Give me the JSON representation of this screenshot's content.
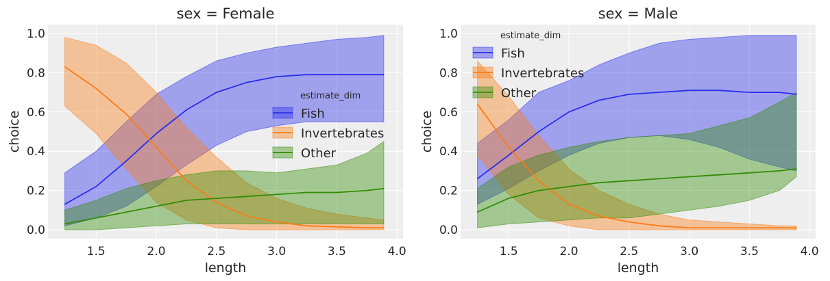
{
  "chart_data": [
    {
      "type": "line",
      "title": "sex = Female",
      "xlabel": "length",
      "ylabel": "choice",
      "xlim": [
        1.1,
        4.05
      ],
      "ylim": [
        -0.045,
        1.045
      ],
      "xticks": [
        "1.5",
        "2.0",
        "2.5",
        "3.0",
        "3.5",
        "4.0"
      ],
      "yticks": [
        "0.0",
        "0.2",
        "0.4",
        "0.6",
        "0.8",
        "1.0"
      ],
      "grid": true,
      "legend": {
        "title": "estimate_dim",
        "placement": "center-right"
      },
      "x": [
        1.24,
        1.5,
        1.75,
        2.0,
        2.25,
        2.5,
        2.75,
        3.0,
        3.25,
        3.5,
        3.75,
        3.89
      ],
      "series": [
        {
          "name": "Fish",
          "color": "#2a2eec",
          "values": [
            0.13,
            0.22,
            0.35,
            0.49,
            0.61,
            0.7,
            0.75,
            0.78,
            0.79,
            0.79,
            0.79,
            0.79
          ],
          "lower": [
            0.02,
            0.06,
            0.12,
            0.22,
            0.33,
            0.43,
            0.5,
            0.53,
            0.55,
            0.55,
            0.55,
            0.55
          ],
          "upper": [
            0.29,
            0.4,
            0.55,
            0.69,
            0.78,
            0.86,
            0.9,
            0.93,
            0.95,
            0.97,
            0.98,
            0.99
          ]
        },
        {
          "name": "Invertebrates",
          "color": "#fa7c17",
          "values": [
            0.83,
            0.72,
            0.59,
            0.42,
            0.25,
            0.14,
            0.07,
            0.04,
            0.02,
            0.015,
            0.01,
            0.01
          ],
          "lower": [
            0.63,
            0.49,
            0.31,
            0.14,
            0.05,
            0.01,
            0.0,
            0.0,
            0.0,
            0.0,
            0.0,
            0.0
          ],
          "upper": [
            0.98,
            0.94,
            0.85,
            0.7,
            0.52,
            0.37,
            0.24,
            0.16,
            0.11,
            0.08,
            0.06,
            0.05
          ]
        },
        {
          "name": "Other",
          "color": "#328c06",
          "values": [
            0.03,
            0.06,
            0.09,
            0.12,
            0.15,
            0.16,
            0.17,
            0.18,
            0.19,
            0.19,
            0.2,
            0.21
          ],
          "lower": [
            0.0,
            0.0,
            0.01,
            0.02,
            0.03,
            0.03,
            0.03,
            0.03,
            0.03,
            0.03,
            0.03,
            0.03
          ],
          "upper": [
            0.1,
            0.15,
            0.21,
            0.25,
            0.28,
            0.3,
            0.3,
            0.29,
            0.31,
            0.33,
            0.39,
            0.45
          ]
        }
      ]
    },
    {
      "type": "line",
      "title": "sex = Male",
      "xlabel": "length",
      "ylabel": "choice",
      "xlim": [
        1.1,
        4.05
      ],
      "ylim": [
        -0.045,
        1.045
      ],
      "xticks": [
        "1.5",
        "2.0",
        "2.5",
        "3.0",
        "3.5",
        "4.0"
      ],
      "yticks": [
        "0.0",
        "0.2",
        "0.4",
        "0.6",
        "0.8",
        "1.0"
      ],
      "grid": true,
      "legend": {
        "title": "estimate_dim",
        "placement": "top-left"
      },
      "x": [
        1.24,
        1.5,
        1.75,
        2.0,
        2.25,
        2.5,
        2.75,
        3.0,
        3.25,
        3.5,
        3.75,
        3.89
      ],
      "series": [
        {
          "name": "Fish",
          "color": "#2a2eec",
          "values": [
            0.26,
            0.38,
            0.5,
            0.6,
            0.66,
            0.69,
            0.7,
            0.71,
            0.71,
            0.7,
            0.7,
            0.69
          ],
          "lower": [
            0.13,
            0.21,
            0.3,
            0.38,
            0.44,
            0.47,
            0.48,
            0.46,
            0.42,
            0.36,
            0.32,
            0.3
          ],
          "upper": [
            0.44,
            0.56,
            0.7,
            0.76,
            0.84,
            0.9,
            0.95,
            0.97,
            0.98,
            0.99,
            0.99,
            0.99
          ]
        },
        {
          "name": "Invertebrates",
          "color": "#fa7c17",
          "values": [
            0.64,
            0.42,
            0.25,
            0.13,
            0.07,
            0.04,
            0.02,
            0.01,
            0.01,
            0.01,
            0.01,
            0.01
          ],
          "lower": [
            0.38,
            0.18,
            0.06,
            0.02,
            0.0,
            0.0,
            0.0,
            0.0,
            0.0,
            0.0,
            0.0,
            0.0
          ],
          "upper": [
            0.86,
            0.68,
            0.48,
            0.31,
            0.2,
            0.13,
            0.08,
            0.05,
            0.04,
            0.03,
            0.02,
            0.02
          ]
        },
        {
          "name": "Other",
          "color": "#328c06",
          "values": [
            0.09,
            0.16,
            0.2,
            0.22,
            0.24,
            0.25,
            0.26,
            0.27,
            0.28,
            0.29,
            0.3,
            0.31
          ],
          "lower": [
            0.01,
            0.03,
            0.04,
            0.05,
            0.06,
            0.06,
            0.08,
            0.1,
            0.12,
            0.15,
            0.2,
            0.27
          ],
          "upper": [
            0.21,
            0.32,
            0.38,
            0.42,
            0.45,
            0.47,
            0.48,
            0.49,
            0.53,
            0.57,
            0.65,
            0.7
          ]
        }
      ]
    }
  ]
}
